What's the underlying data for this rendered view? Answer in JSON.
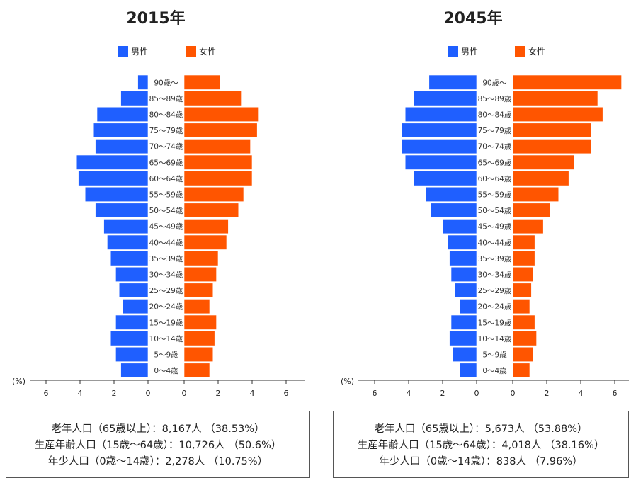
{
  "colors": {
    "male": "#1f5fff",
    "female": "#ff5500"
  },
  "legend": {
    "male": "男性",
    "female": "女性"
  },
  "unit_label": "(%)",
  "chart_data": [
    {
      "type": "bar",
      "title": "2015年",
      "categories": [
        "90歳～",
        "85～89歳",
        "80～84歳",
        "75～79歳",
        "70～74歳",
        "65～69歳",
        "60～64歳",
        "55～59歳",
        "50～54歳",
        "45～49歳",
        "40～44歳",
        "35～39歳",
        "30～34歳",
        "25～29歳",
        "20～24歳",
        "15～19歳",
        "10～14歳",
        "5～9歳",
        "0～4歳"
      ],
      "series": [
        {
          "name": "男性",
          "values": [
            0.6,
            1.6,
            3.0,
            3.2,
            3.1,
            4.2,
            4.1,
            3.7,
            3.1,
            2.6,
            2.4,
            2.2,
            1.9,
            1.7,
            1.5,
            1.9,
            2.2,
            1.9,
            1.6
          ]
        },
        {
          "name": "女性",
          "values": [
            2.1,
            3.4,
            4.4,
            4.3,
            3.9,
            4.0,
            4.0,
            3.5,
            3.2,
            2.6,
            2.5,
            2.0,
            1.9,
            1.7,
            1.5,
            1.9,
            1.8,
            1.7,
            1.5
          ]
        }
      ],
      "xlim": [
        0,
        7
      ],
      "xticks": [
        0,
        2,
        4,
        6
      ],
      "xlabel": "(%)",
      "stats": [
        "老年人口（65歳以上）：8,167人 （38.53%）",
        "生産年齢人口（15歳～64歳）：10,726人 （50.6%）",
        "年少人口（0歳～14歳）：2,278人 （10.75%）"
      ]
    },
    {
      "type": "bar",
      "title": "2045年",
      "categories": [
        "90歳～",
        "85～89歳",
        "80～84歳",
        "75～79歳",
        "70～74歳",
        "65～69歳",
        "60～64歳",
        "55～59歳",
        "50～54歳",
        "45～49歳",
        "40～44歳",
        "35～39歳",
        "30～34歳",
        "25～29歳",
        "20～24歳",
        "15～19歳",
        "10～14歳",
        "5～9歳",
        "0～4歳"
      ],
      "series": [
        {
          "name": "男性",
          "values": [
            2.8,
            3.7,
            4.2,
            4.4,
            4.4,
            4.2,
            3.7,
            3.0,
            2.7,
            2.0,
            1.7,
            1.6,
            1.5,
            1.3,
            1.0,
            1.5,
            1.6,
            1.4,
            1.0
          ]
        },
        {
          "name": "女性",
          "values": [
            6.4,
            5.0,
            5.3,
            4.6,
            4.6,
            3.6,
            3.3,
            2.7,
            2.2,
            1.8,
            1.3,
            1.3,
            1.2,
            1.1,
            1.0,
            1.3,
            1.4,
            1.2,
            1.0
          ]
        }
      ],
      "xlim": [
        0,
        7
      ],
      "xticks": [
        0,
        2,
        4,
        6
      ],
      "xlabel": "(%)",
      "stats": [
        "老年人口（65歳以上）：5,673人 （53.88%）",
        "生産年齢人口（15歳～64歳）：4,018人 （38.16%）",
        "年少人口（0歳～14歳）：838人 （7.96%）"
      ]
    }
  ]
}
